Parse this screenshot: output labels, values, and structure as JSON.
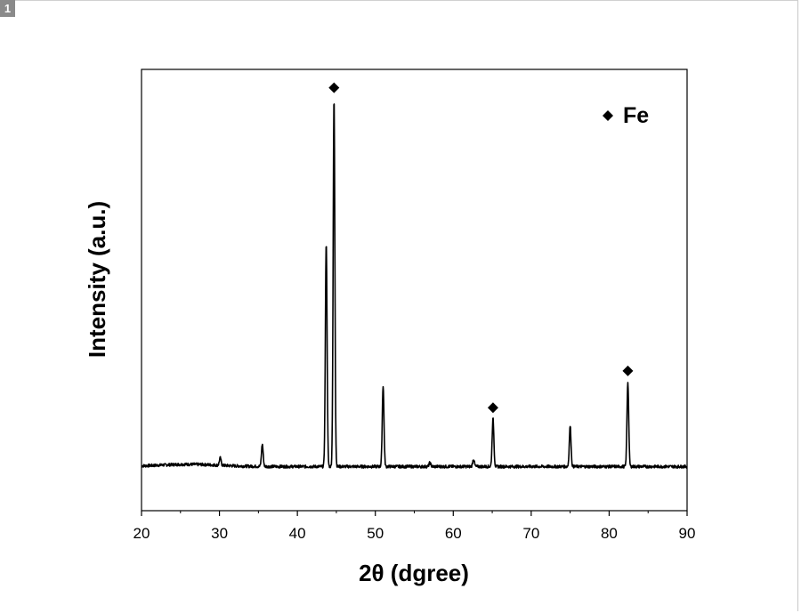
{
  "page": {
    "badge": "1"
  },
  "chart_data": {
    "type": "line",
    "xlabel": "2θ (dgree)",
    "ylabel": "Intensity (a.u.)",
    "xlim": [
      20,
      90
    ],
    "ylim": [
      -0.12,
      1.08
    ],
    "xticks": [
      20,
      30,
      40,
      50,
      60,
      70,
      80,
      90
    ],
    "grid": false,
    "legend": {
      "position": "top-right",
      "entries": [
        {
          "marker": "diamond",
          "label": "Fe"
        }
      ]
    },
    "baseline": 0.0,
    "peaks": [
      {
        "x": 30.1,
        "y": 0.02
      },
      {
        "x": 35.5,
        "y": 0.06
      },
      {
        "x": 43.7,
        "y": 0.61
      },
      {
        "x": 44.7,
        "y": 1.0
      },
      {
        "x": 51.0,
        "y": 0.22
      },
      {
        "x": 57.0,
        "y": 0.01
      },
      {
        "x": 62.6,
        "y": 0.02
      },
      {
        "x": 65.1,
        "y": 0.13
      },
      {
        "x": 75.0,
        "y": 0.11
      },
      {
        "x": 82.4,
        "y": 0.23
      }
    ],
    "fe_markers": [
      {
        "x": 44.7,
        "y": 1.03
      },
      {
        "x": 65.1,
        "y": 0.16
      },
      {
        "x": 82.4,
        "y": 0.26
      }
    ],
    "series": [
      {
        "line_color": "#000000"
      }
    ]
  }
}
